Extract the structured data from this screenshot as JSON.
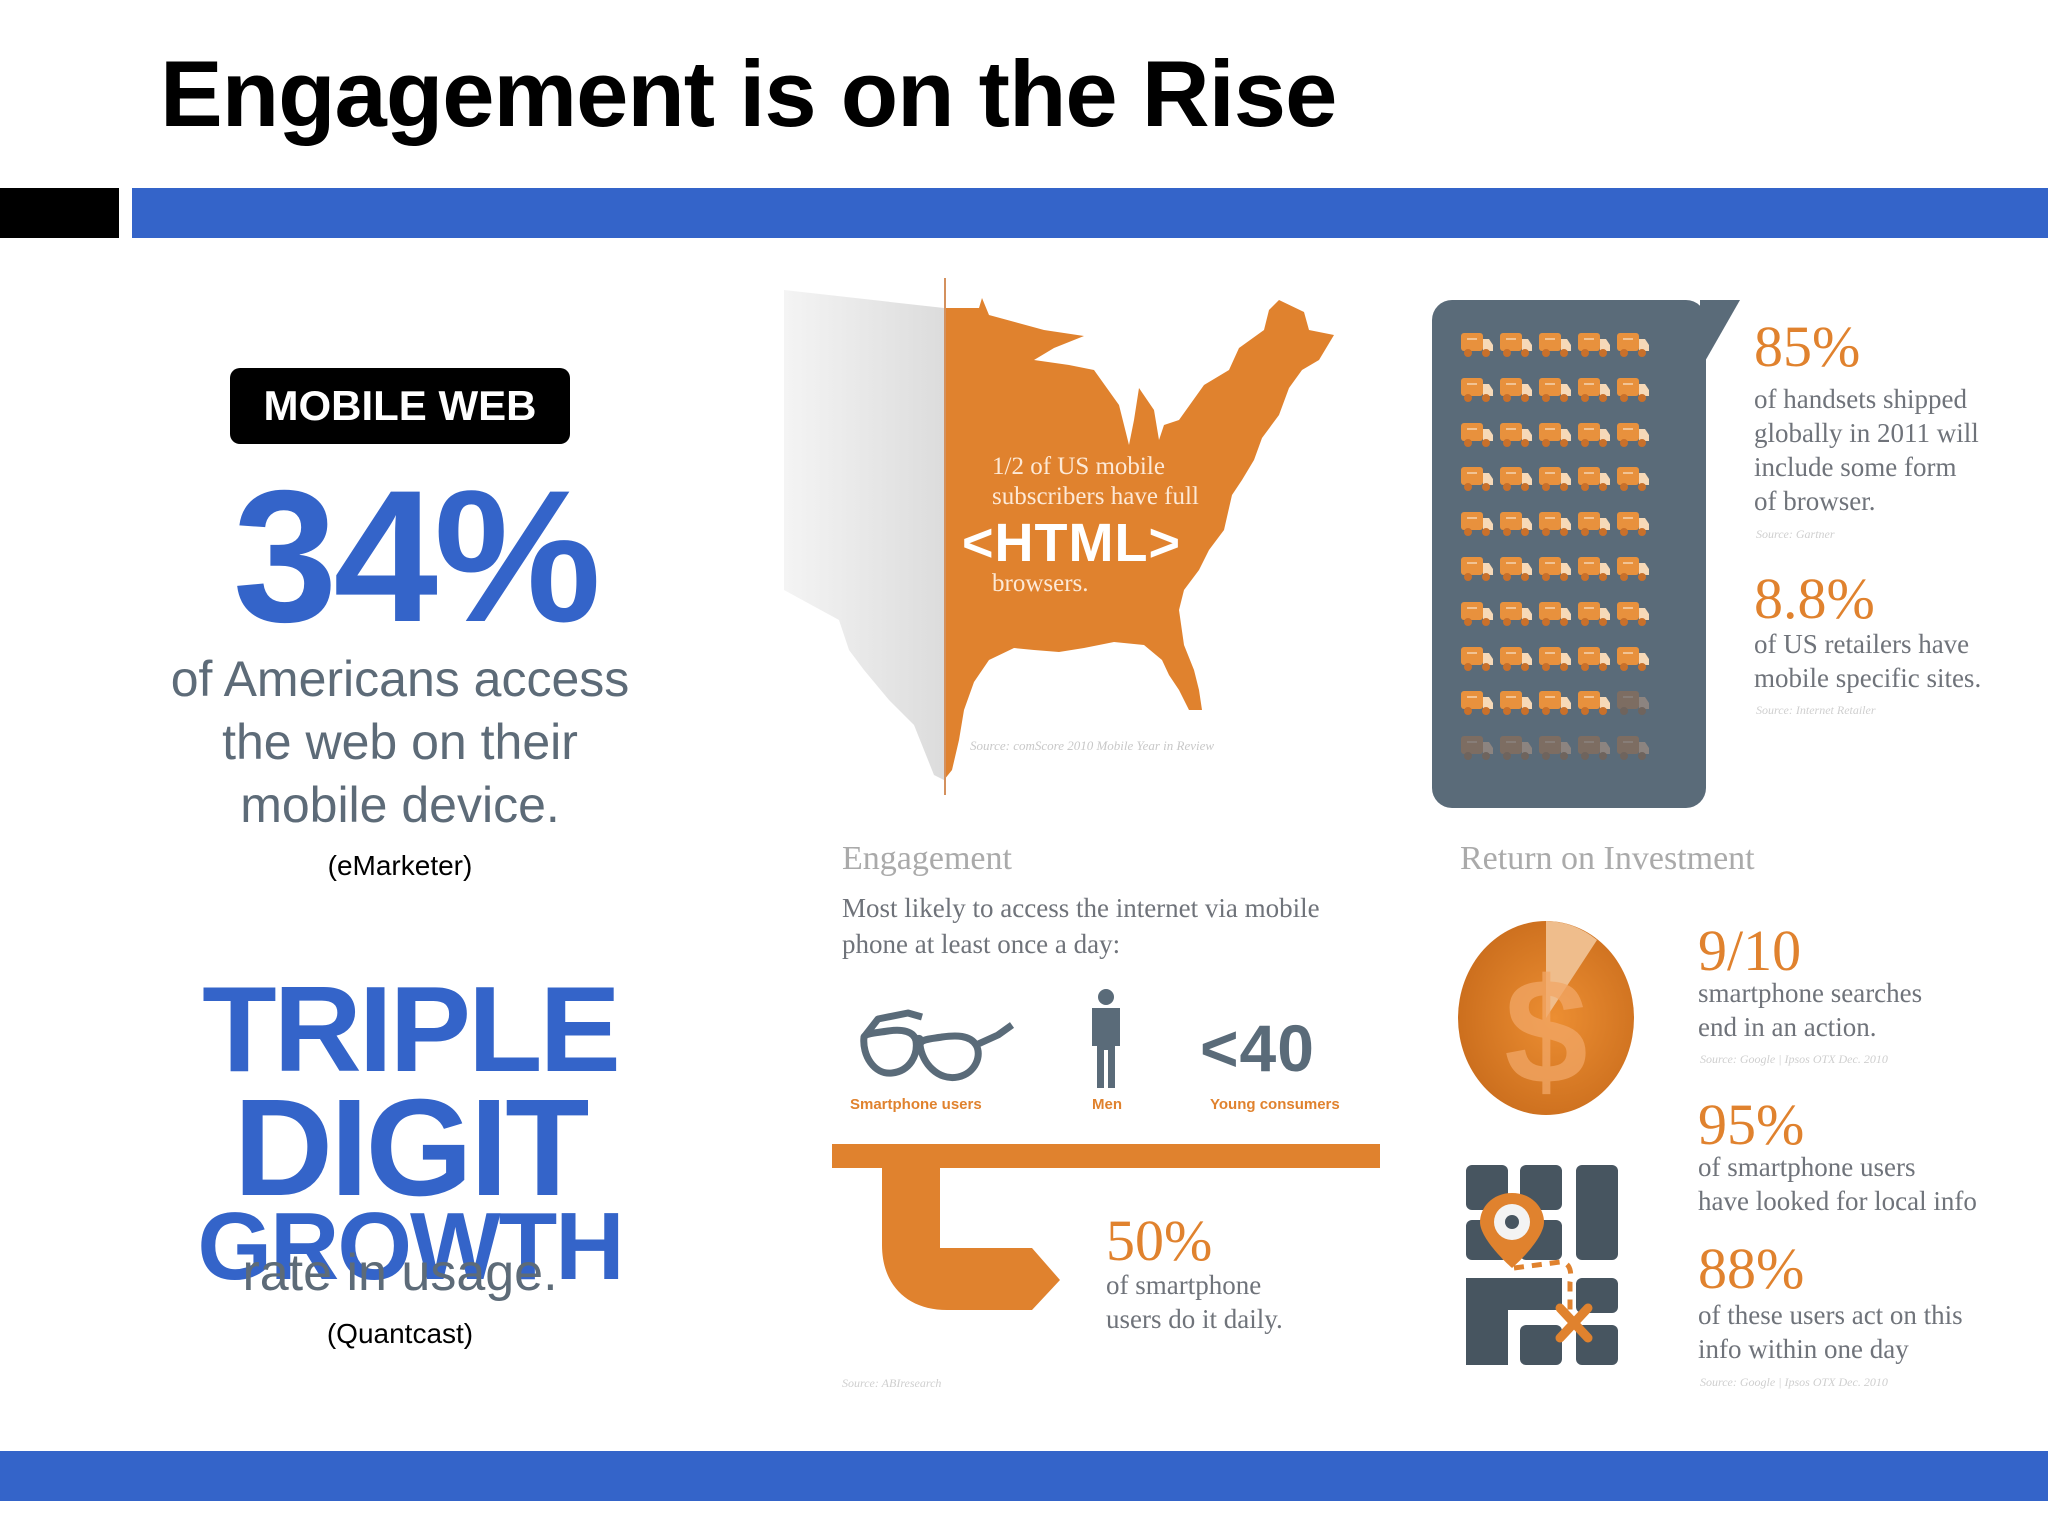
{
  "title": "Engagement is on the Rise",
  "colors": {
    "brand_blue": "#3464c9",
    "orange": "#e0822e",
    "slate": "#5a6b79",
    "gray_text": "#5d6b78"
  },
  "left": {
    "badge": "MOBILE WEB",
    "stat1": {
      "value": "34%",
      "lines": [
        "of Americans access",
        "the web on their",
        "mobile device."
      ],
      "source": "(eMarketer)"
    },
    "stat2": {
      "line1": "TRIPLE",
      "line2": "DIGIT",
      "line3": "GROWTH",
      "caption": "rate in usage.",
      "source": "(Quantcast)"
    }
  },
  "map_panel": {
    "caption_lines": [
      "1/2 of US mobile",
      "subscribers have full"
    ],
    "highlight": "<HTML>",
    "caption_end": "browsers.",
    "source": "Source: comScore 2010 Mobile Year in Review"
  },
  "truck_panel": {
    "rows": 10,
    "cols": 5,
    "filled": 44,
    "stats": [
      {
        "value": "85%",
        "lines": [
          "of handsets shipped",
          "globally in 2011 will",
          "include some form",
          "of browser."
        ],
        "source": "Source: Gartner"
      },
      {
        "value": "8.8%",
        "lines": [
          "of US retailers have",
          "mobile specific sites."
        ],
        "source": "Source: Internet Retailer"
      }
    ]
  },
  "engagement": {
    "title": "Engagement",
    "subtitle_lines": [
      "Most likely to access the internet via mobile",
      "phone at least once a day:"
    ],
    "icons": [
      {
        "icon": "glasses-icon",
        "label": "Smartphone users"
      },
      {
        "icon": "man-icon",
        "label": "Men"
      },
      {
        "icon": "under-40",
        "big": "<40",
        "label": "Young consumers"
      }
    ],
    "stat": {
      "value": "50%",
      "lines": [
        "of smartphone",
        "users do it daily."
      ]
    },
    "source": "Source: ABIresearch"
  },
  "roi": {
    "title": "Return on Investment",
    "stats": [
      {
        "value": "9/10",
        "lines": [
          "smartphone searches",
          "end in an action."
        ],
        "source": "Source: Google | Ipsos OTX Dec. 2010"
      },
      {
        "value": "95%",
        "lines": [
          "of smartphone users",
          "have looked for local info"
        ]
      },
      {
        "value": "88%",
        "lines": [
          "of these users act on this",
          "info within one day"
        ],
        "source": "Source: Google | Ipsos OTX Dec. 2010"
      }
    ]
  }
}
